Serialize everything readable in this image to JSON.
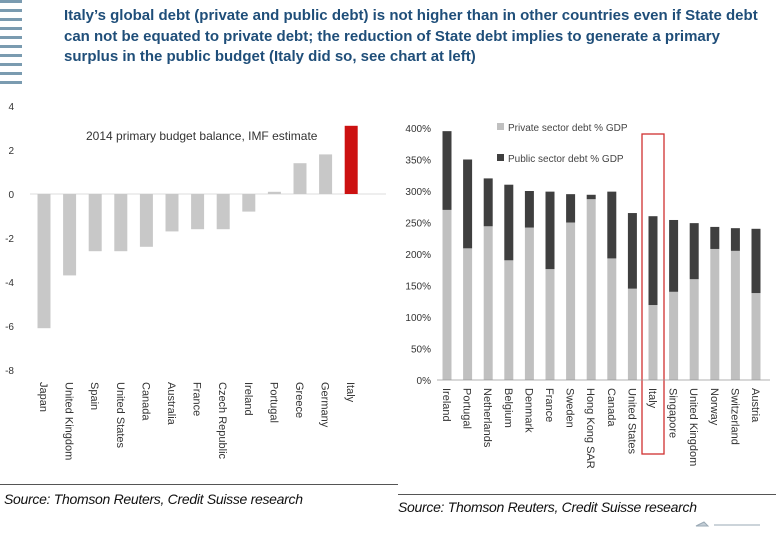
{
  "headline": "Italy’s global debt (private and public debt) is not higher than in other countries even if State debt can not be equated to private debt; the reduction of State debt implies to generate a primary surplus in the public budget (Italy did so, see chart at left)",
  "colors": {
    "headline": "#1f4e79",
    "grey_bar": "#c8c8c8",
    "highlight_bar": "#cc1111",
    "dark_bar": "#3f3f3f",
    "light_bar": "#c0c0c0",
    "highlight_box": "#d03030"
  },
  "chart_data": [
    {
      "type": "bar",
      "title": "2014 primary budget balance, IMF estimate",
      "categories": [
        "Japan",
        "United Kingdom",
        "Spain",
        "United States",
        "Canada",
        "Australia",
        "France",
        "Czech Republic",
        "Ireland",
        "Portugal",
        "Greece",
        "Germany",
        "Italy"
      ],
      "values": [
        -6.1,
        -3.7,
        -2.6,
        -2.6,
        -2.4,
        -1.7,
        -1.6,
        -1.6,
        -0.8,
        0.1,
        1.4,
        1.8,
        3.1
      ],
      "highlight": "Italy",
      "ylim": [
        -8,
        4
      ],
      "yticks": [
        "4",
        "2",
        "0",
        "-2",
        "-4",
        "-6",
        "-8"
      ],
      "source": "Source: Thomson Reuters, Credit Suisse research"
    },
    {
      "type": "bar",
      "stacked": true,
      "categories": [
        "Ireland",
        "Portugal",
        "Netherlands",
        "Belgium",
        "Denmark",
        "France",
        "Sweden",
        "Hong Kong SAR",
        "Canada",
        "United States",
        "Italy",
        "Singapore",
        "United Kingdom",
        "Norway",
        "Switzerland",
        "Austria"
      ],
      "series": [
        {
          "name": "Private sector debt % GDP",
          "values": [
            270,
            209,
            244,
            190,
            242,
            176,
            250,
            287,
            193,
            145,
            119,
            140,
            160,
            208,
            205,
            138
          ]
        },
        {
          "name": "Public sector debt % GDP",
          "values": [
            125,
            141,
            76,
            120,
            58,
            123,
            45,
            7,
            106,
            120,
            141,
            114,
            89,
            35,
            36,
            102
          ]
        }
      ],
      "highlight": "Italy",
      "ylim": [
        0,
        400
      ],
      "yticks": [
        "400%",
        "350%",
        "300%",
        "250%",
        "200%",
        "150%",
        "100%",
        "50%",
        "0%"
      ],
      "source": "Source: Thomson Reuters, Credit Suisse research"
    }
  ]
}
